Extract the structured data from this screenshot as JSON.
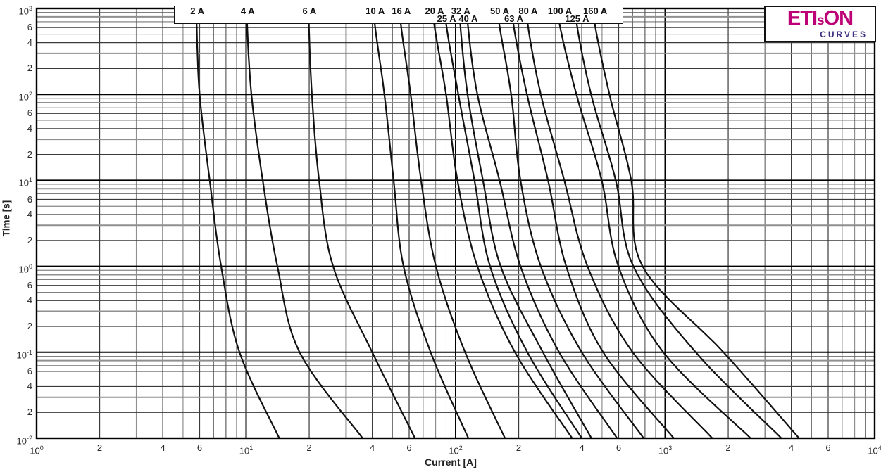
{
  "logo": {
    "brand_pre": "ETI",
    "brand_s": "s",
    "brand_post": "ON",
    "subtitle": "CURVES",
    "brand_color": "#BE0076",
    "subtitle_color": "#3D2B7E"
  },
  "chart_data": {
    "type": "line",
    "title": "",
    "xlabel": "Current [A]",
    "ylabel": "Time [s]",
    "x_axis": {
      "scale": "log",
      "min_exp": 0,
      "max_exp": 4,
      "base_label": "10",
      "minor_labeled": [
        2,
        4,
        6
      ]
    },
    "y_axis": {
      "scale": "log",
      "min_exp": -2,
      "max_exp": 3,
      "base_label": "10",
      "minor_labeled": [
        6,
        4,
        2
      ]
    },
    "grid": {
      "minor_steps": [
        2,
        3,
        4,
        5,
        6,
        7,
        8,
        9
      ],
      "on": true
    },
    "curve_color": "#111111",
    "legend_position": "top-strip",
    "series": [
      {
        "name": "2 A",
        "rating_amps": 2,
        "label_row": 1,
        "points": [
          [
            5.8,
            700
          ],
          [
            6.0,
            100
          ],
          [
            6.7,
            10
          ],
          [
            7.6,
            1
          ],
          [
            9.3,
            0.1
          ],
          [
            14.4,
            0.01
          ]
        ]
      },
      {
        "name": "4 A",
        "rating_amps": 4,
        "label_row": 1,
        "points": [
          [
            10.1,
            700
          ],
          [
            10.6,
            100
          ],
          [
            12.0,
            10
          ],
          [
            14.1,
            1
          ],
          [
            18.0,
            0.1
          ],
          [
            36,
            0.01
          ]
        ]
      },
      {
        "name": "6 A",
        "rating_amps": 6,
        "label_row": 1,
        "points": [
          [
            19.9,
            700
          ],
          [
            20.6,
            100
          ],
          [
            22.3,
            10
          ],
          [
            26,
            1
          ],
          [
            40,
            0.1
          ],
          [
            64,
            0.01
          ]
        ]
      },
      {
        "name": "10 A",
        "rating_amps": 10,
        "label_row": 1,
        "points": [
          [
            41,
            700
          ],
          [
            45.7,
            100
          ],
          [
            50.6,
            10
          ],
          [
            56.4,
            1
          ],
          [
            76,
            0.1
          ],
          [
            115,
            0.01
          ]
        ]
      },
      {
        "name": "16 A",
        "rating_amps": 16,
        "label_row": 1,
        "points": [
          [
            54.6,
            700
          ],
          [
            61,
            100
          ],
          [
            68.4,
            10
          ],
          [
            80.5,
            1
          ],
          [
            111,
            0.1
          ],
          [
            172,
            0.01
          ]
        ]
      },
      {
        "name": "20 A",
        "rating_amps": 20,
        "label_row": 1,
        "points": [
          [
            78.7,
            700
          ],
          [
            90,
            100
          ],
          [
            102,
            10
          ],
          [
            127,
            1
          ],
          [
            192,
            0.1
          ],
          [
            360,
            0.01
          ]
        ]
      },
      {
        "name": "25 A",
        "rating_amps": 25,
        "label_row": 2,
        "points": [
          [
            89.8,
            700
          ],
          [
            103,
            100
          ],
          [
            123,
            10
          ],
          [
            146,
            1
          ],
          [
            220,
            0.1
          ],
          [
            400,
            0.01
          ]
        ]
      },
      {
        "name": "32 A",
        "rating_amps": 32,
        "label_row": 1,
        "points": [
          [
            105,
            700
          ],
          [
            114,
            100
          ],
          [
            135,
            10
          ],
          [
            164,
            1
          ],
          [
            261,
            0.1
          ],
          [
            445,
            0.01
          ]
        ]
      },
      {
        "name": "40 A",
        "rating_amps": 40,
        "label_row": 2,
        "points": [
          [
            114,
            700
          ],
          [
            127,
            100
          ],
          [
            162,
            10
          ],
          [
            204,
            1
          ],
          [
            312,
            0.1
          ],
          [
            590,
            0.01
          ]
        ]
      },
      {
        "name": "50 A",
        "rating_amps": 50,
        "label_row": 1,
        "points": [
          [
            161,
            700
          ],
          [
            184,
            100
          ],
          [
            204,
            10
          ],
          [
            255,
            1
          ],
          [
            400,
            0.1
          ],
          [
            790,
            0.01
          ]
        ]
      },
      {
        "name": "63 A",
        "rating_amps": 63,
        "label_row": 2,
        "points": [
          [
            188,
            700
          ],
          [
            219,
            100
          ],
          [
            276,
            10
          ],
          [
            337,
            1
          ],
          [
            506,
            0.1
          ],
          [
            1100,
            0.01
          ]
        ]
      },
      {
        "name": "80 A",
        "rating_amps": 80,
        "label_row": 1,
        "points": [
          [
            220,
            700
          ],
          [
            255,
            100
          ],
          [
            330,
            10
          ],
          [
            426,
            1
          ],
          [
            700,
            0.1
          ],
          [
            1680,
            0.01
          ]
        ]
      },
      {
        "name": "100 A",
        "rating_amps": 100,
        "label_row": 1,
        "points": [
          [
            312,
            700
          ],
          [
            377,
            100
          ],
          [
            498,
            10
          ],
          [
            598,
            1
          ],
          [
            980,
            0.1
          ],
          [
            2560,
            0.01
          ]
        ]
      },
      {
        "name": "125 A",
        "rating_amps": 125,
        "label_row": 2,
        "points": [
          [
            377,
            700
          ],
          [
            443,
            100
          ],
          [
            581,
            10
          ],
          [
            705,
            1
          ],
          [
            1400,
            0.1
          ],
          [
            3590,
            0.01
          ]
        ]
      },
      {
        "name": "160 A",
        "rating_amps": 160,
        "label_row": 1,
        "points": [
          [
            460,
            700
          ],
          [
            542,
            100
          ],
          [
            689,
            10
          ],
          [
            780,
            1
          ],
          [
            1900,
            0.1
          ],
          [
            4360,
            0.01
          ]
        ]
      }
    ]
  }
}
